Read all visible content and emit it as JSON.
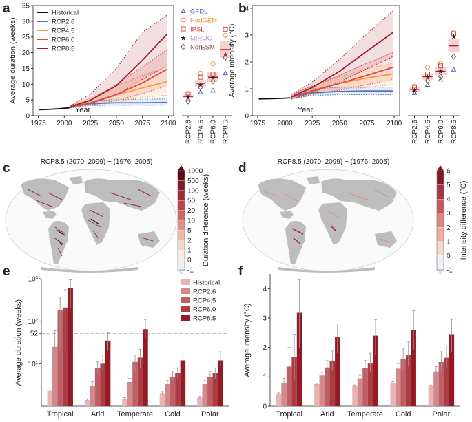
{
  "panel_labels": [
    "a",
    "b",
    "c",
    "d",
    "e",
    "f"
  ],
  "colors": {
    "Historical": "#111111",
    "RCP2.6": "#4a78c4",
    "RCP4.5": "#f59a3b",
    "RCP6.0": "#e0484a",
    "RCP8.5": "#a51d2a",
    "GFDL": "#4b61c9",
    "HadGEM": "#f0913c",
    "IPSL": "#d9413f",
    "MIROC": "#b58cd6",
    "NorESM": "#8a4b3a",
    "land": "#bdbdbd",
    "ocean_grid": "#e6e6e6",
    "dashed": "#999999"
  },
  "map_c": {
    "title": "RCP8.5 (2070–2099) − (1976–2005)",
    "colorbar_label": "Duration difference (weeks)",
    "colorbar_ticks": [
      "1000",
      "500",
      "100",
      "50",
      "20",
      "10",
      "5",
      "2",
      "1",
      "0",
      "-1"
    ]
  },
  "map_d": {
    "title": "RCP8.5 (2070–2099) − (1976–2005)",
    "colorbar_label": "Intensity difference (°C)",
    "colorbar_ticks": [
      "6",
      "5",
      "4",
      "3",
      "2",
      "1",
      "0",
      "-1"
    ]
  },
  "chart_data": [
    {
      "id": "a",
      "type": "line",
      "title": "",
      "xlabel": "Year",
      "ylabel": "Average duration (weeks)",
      "xlim": [
        1970,
        2105
      ],
      "ylim": [
        0,
        35
      ],
      "xticks": [
        1975,
        2000,
        2025,
        2050,
        2075,
        2100
      ],
      "yticks": [
        0,
        5,
        10,
        15,
        20,
        25,
        30,
        35
      ],
      "legend": [
        "Historical",
        "RCP2.6",
        "RCP4.5",
        "RCP6.0",
        "RCP8.5"
      ],
      "series": [
        {
          "name": "Historical",
          "x": [
            1976,
            1985,
            1995,
            2005
          ],
          "values": [
            1.9,
            2.0,
            2.2,
            2.5
          ]
        },
        {
          "name": "RCP2.6",
          "x": [
            2006,
            2025,
            2050,
            2075,
            2099
          ],
          "values": [
            2.8,
            3.8,
            4.1,
            4.1,
            4.2
          ],
          "band_low": [
            2.5,
            3.2,
            3.3,
            3.3,
            3.3
          ],
          "band_high": [
            3.2,
            4.6,
            5.2,
            5.2,
            5.3
          ]
        },
        {
          "name": "RCP4.5",
          "x": [
            2006,
            2025,
            2050,
            2075,
            2099
          ],
          "values": [
            2.8,
            4.2,
            6.6,
            8.8,
            10.8
          ],
          "band_low": [
            2.5,
            3.4,
            4.6,
            5.8,
            6.5
          ],
          "band_high": [
            3.2,
            5.5,
            9.5,
            12.8,
            15.6
          ]
        },
        {
          "name": "RCP6.0",
          "x": [
            2006,
            2025,
            2050,
            2075,
            2099
          ],
          "values": [
            2.8,
            4.0,
            6.7,
            10.4,
            14.8
          ],
          "band_low": [
            2.5,
            3.3,
            4.8,
            7.0,
            9.5
          ],
          "band_high": [
            3.2,
            5.0,
            9.8,
            15.5,
            21.0
          ]
        },
        {
          "name": "RCP8.5",
          "x": [
            2006,
            2025,
            2050,
            2075,
            2099
          ],
          "values": [
            2.8,
            4.9,
            9.5,
            17.6,
            26.0
          ],
          "band_low": [
            2.5,
            3.8,
            6.5,
            11.5,
            16.0
          ],
          "band_high": [
            3.2,
            6.8,
            15.0,
            26.5,
            32.0
          ]
        }
      ]
    },
    {
      "id": "a_models",
      "type": "scatter",
      "categories": [
        "RCP2.6",
        "RCP4.5",
        "RCP6.0",
        "RCP8.5"
      ],
      "ylim": [
        0,
        35
      ],
      "legend": [
        "GFDL",
        "HadGEM",
        "IPSL",
        "MIROC",
        "NorESM"
      ],
      "series": [
        {
          "name": "GFDL",
          "marker": "triangle",
          "values": [
            5.3,
            7.5,
            8.0,
            13.5
          ]
        },
        {
          "name": "HadGEM",
          "marker": "circle",
          "values": [
            7.2,
            13.5,
            16.5,
            25.5
          ]
        },
        {
          "name": "IPSL",
          "marker": "square",
          "values": [
            6.8,
            12.2,
            13.2,
            27.5
          ]
        },
        {
          "name": "MIROC",
          "marker": "star",
          "values": [
            6.0,
            9.8,
            12.0,
            19.5
          ]
        },
        {
          "name": "NorESM",
          "marker": "diamond",
          "values": [
            4.6,
            9.0,
            11.0,
            18.5
          ]
        }
      ],
      "mean": [
        6.1,
        10.3,
        12.2,
        21.0
      ],
      "error": [
        0.5,
        1.0,
        1.5,
        2.6
      ]
    },
    {
      "id": "b",
      "type": "line",
      "xlabel": "Year",
      "ylabel": "Average intensity (°C)",
      "xlim": [
        1970,
        2105
      ],
      "ylim": [
        0,
        4.1
      ],
      "xticks": [
        1975,
        2000,
        2025,
        2050,
        2075,
        2100
      ],
      "yticks": [
        0,
        1,
        2,
        3,
        4
      ],
      "series": [
        {
          "name": "Historical",
          "x": [
            1976,
            1985,
            1995,
            2005
          ],
          "values": [
            0.62,
            0.63,
            0.64,
            0.66
          ]
        },
        {
          "name": "RCP2.6",
          "x": [
            2006,
            2025,
            2050,
            2075,
            2099
          ],
          "values": [
            0.7,
            0.85,
            0.9,
            0.92,
            0.92
          ],
          "band_low": [
            0.62,
            0.75,
            0.78,
            0.78,
            0.78
          ],
          "band_high": [
            0.8,
            1.0,
            1.05,
            1.06,
            1.06
          ]
        },
        {
          "name": "RCP4.5",
          "x": [
            2006,
            2025,
            2050,
            2075,
            2099
          ],
          "values": [
            0.7,
            0.95,
            1.2,
            1.4,
            1.55
          ],
          "band_low": [
            0.62,
            0.8,
            0.95,
            1.05,
            1.15
          ],
          "band_high": [
            0.8,
            1.1,
            1.45,
            1.75,
            1.95
          ]
        },
        {
          "name": "RCP6.0",
          "x": [
            2006,
            2025,
            2050,
            2075,
            2099
          ],
          "values": [
            0.7,
            0.92,
            1.2,
            1.5,
            1.8
          ],
          "band_low": [
            0.62,
            0.78,
            0.95,
            1.15,
            1.35
          ],
          "band_high": [
            0.8,
            1.1,
            1.5,
            1.95,
            2.35
          ]
        },
        {
          "name": "RCP8.5",
          "x": [
            2006,
            2025,
            2050,
            2075,
            2099
          ],
          "values": [
            0.7,
            1.05,
            1.65,
            2.4,
            3.1
          ],
          "band_low": [
            0.62,
            0.85,
            1.25,
            1.75,
            2.2
          ],
          "band_high": [
            0.8,
            1.25,
            2.1,
            3.05,
            3.9
          ]
        }
      ]
    },
    {
      "id": "b_models",
      "type": "scatter",
      "categories": [
        "RCP2.6",
        "RCP4.5",
        "RCP6.0",
        "RCP8.5"
      ],
      "ylim": [
        0,
        4.1
      ],
      "series": [
        {
          "name": "GFDL",
          "marker": "triangle",
          "values": [
            0.85,
            1.15,
            1.35,
            1.72
          ]
        },
        {
          "name": "HadGEM",
          "marker": "circle",
          "values": [
            1.1,
            1.8,
            1.95,
            3.1
          ]
        },
        {
          "name": "IPSL",
          "marker": "square",
          "values": [
            1.05,
            1.55,
            1.85,
            3.05
          ]
        },
        {
          "name": "MIROC",
          "marker": "star",
          "values": [
            0.95,
            1.45,
            1.65,
            2.95
          ]
        },
        {
          "name": "NorESM",
          "marker": "diamond",
          "values": [
            0.9,
            1.3,
            1.45,
            2.2
          ]
        }
      ],
      "mean": [
        0.98,
        1.45,
        1.65,
        2.6
      ],
      "error": [
        0.08,
        0.12,
        0.15,
        0.25
      ]
    },
    {
      "id": "e",
      "type": "bar",
      "yscale": "log",
      "ylabel": "Average duration (weeks)",
      "ylim": [
        1,
        1000
      ],
      "yticks": [
        10,
        52,
        100,
        1000
      ],
      "ytick_labels": [
        "10¹",
        "52",
        "10²",
        "10³"
      ],
      "reference_line": 52,
      "categories": [
        "Tropical",
        "Arid",
        "Temperate",
        "Cold",
        "Polar"
      ],
      "legend": [
        "Historical",
        "RCP2.6",
        "RCP4.5",
        "RCP6.0",
        "RCP8.5"
      ],
      "bar_colors": [
        "#e8b4b4",
        "#d08a8c",
        "#bd5f64",
        "#ab3c43",
        "#961a24"
      ],
      "series": [
        {
          "name": "Historical",
          "values": [
            2.3,
            1.4,
            1.5,
            2.0,
            1.6
          ],
          "err_low": [
            2.0,
            1.3,
            1.4,
            1.8,
            1.5
          ],
          "err_high": [
            2.7,
            1.5,
            1.6,
            2.2,
            1.7
          ]
        },
        {
          "name": "RCP2.6",
          "values": [
            25,
            3.0,
            3.7,
            3.3,
            3.3
          ],
          "err_low": [
            10,
            2.5,
            3.0,
            2.8,
            2.8
          ],
          "err_high": [
            60,
            3.8,
            4.5,
            4.0,
            4.0
          ]
        },
        {
          "name": "RCP4.5",
          "values": [
            180,
            8.0,
            11,
            5.0,
            5.0
          ],
          "err_low": [
            20,
            5.5,
            6.5,
            4.0,
            4.0
          ],
          "err_high": [
            350,
            11,
            16,
            6.5,
            6.5
          ]
        },
        {
          "name": "RCP6.0",
          "values": [
            210,
            10,
            14,
            6.0,
            6.0
          ],
          "err_low": [
            15,
            6.5,
            8.0,
            4.5,
            4.5
          ],
          "err_high": [
            550,
            16,
            22,
            8.0,
            8.0
          ]
        },
        {
          "name": "RCP8.5",
          "values": [
            600,
            35,
            65,
            12,
            12
          ],
          "err_low": [
            200,
            20,
            40,
            8.5,
            8.5
          ],
          "err_high": [
            950,
            55,
            110,
            16,
            19
          ]
        }
      ]
    },
    {
      "id": "f",
      "type": "bar",
      "ylabel": "Average intensity (°C)",
      "ylim": [
        0,
        4.5
      ],
      "yticks": [
        0,
        1,
        2,
        3,
        4
      ],
      "categories": [
        "Tropical",
        "Arid",
        "Temperate",
        "Cold",
        "Polar"
      ],
      "bar_colors": [
        "#e8b4b4",
        "#d08a8c",
        "#bd5f64",
        "#ab3c43",
        "#961a24"
      ],
      "series": [
        {
          "name": "Historical",
          "values": [
            0.42,
            0.75,
            0.68,
            0.8,
            0.68
          ],
          "err_low": [
            0.4,
            0.72,
            0.65,
            0.78,
            0.66
          ],
          "err_high": [
            0.45,
            0.78,
            0.72,
            0.83,
            0.71
          ]
        },
        {
          "name": "RCP2.6",
          "values": [
            0.8,
            1.05,
            0.95,
            1.28,
            1.18
          ],
          "err_low": [
            0.65,
            0.95,
            0.85,
            1.1,
            1.0
          ],
          "err_high": [
            0.95,
            1.15,
            1.05,
            1.45,
            1.35
          ]
        },
        {
          "name": "RCP4.5",
          "values": [
            1.35,
            1.32,
            1.3,
            1.62,
            1.5
          ],
          "err_low": [
            0.8,
            1.1,
            1.1,
            1.25,
            1.2
          ],
          "err_high": [
            2.0,
            1.55,
            1.55,
            1.95,
            1.85
          ]
        },
        {
          "name": "RCP6.0",
          "values": [
            1.68,
            1.55,
            1.45,
            1.75,
            1.65
          ],
          "err_low": [
            0.9,
            1.2,
            1.15,
            1.35,
            1.3
          ],
          "err_high": [
            2.45,
            1.9,
            1.8,
            2.2,
            2.05
          ]
        },
        {
          "name": "RCP8.5",
          "values": [
            3.2,
            2.35,
            2.4,
            2.58,
            2.45
          ],
          "err_low": [
            2.0,
            1.8,
            1.75,
            1.9,
            1.85
          ],
          "err_high": [
            4.3,
            2.8,
            2.95,
            3.25,
            2.95
          ]
        }
      ]
    }
  ]
}
